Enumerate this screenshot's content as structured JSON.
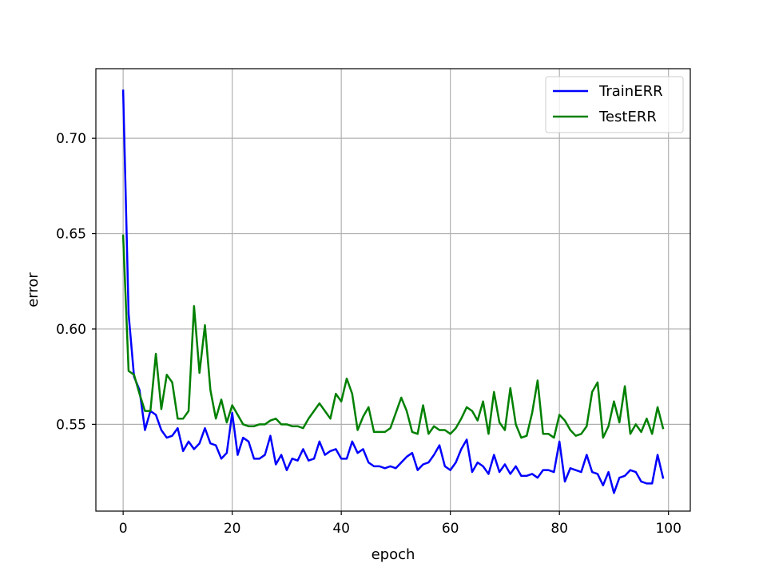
{
  "chart_data": {
    "type": "line",
    "xlabel": "epoch",
    "ylabel": "error",
    "xlim": [
      -5,
      104
    ],
    "ylim": [
      0.5045,
      0.7365
    ],
    "xticks": [
      0,
      20,
      40,
      60,
      80,
      100
    ],
    "yticks": [
      0.55,
      0.6,
      0.65,
      0.7
    ],
    "ytick_labels": [
      "0.55",
      "0.60",
      "0.65",
      "0.70"
    ],
    "grid": true,
    "legend_position": "top-right",
    "series": [
      {
        "name": "TrainERR",
        "color": "#0000ff",
        "x": [
          0,
          1,
          2,
          3,
          4,
          5,
          6,
          7,
          8,
          9,
          10,
          11,
          12,
          13,
          14,
          15,
          16,
          17,
          18,
          19,
          20,
          21,
          22,
          23,
          24,
          25,
          26,
          27,
          28,
          29,
          30,
          31,
          32,
          33,
          34,
          35,
          36,
          37,
          38,
          39,
          40,
          41,
          42,
          43,
          44,
          45,
          46,
          47,
          48,
          49,
          50,
          51,
          52,
          53,
          54,
          55,
          56,
          57,
          58,
          59,
          60,
          61,
          62,
          63,
          64,
          65,
          66,
          67,
          68,
          69,
          70,
          71,
          72,
          73,
          74,
          75,
          76,
          77,
          78,
          79,
          80,
          81,
          82,
          83,
          84,
          85,
          86,
          87,
          88,
          89,
          90,
          91,
          92,
          93,
          94,
          95,
          96,
          97,
          98,
          99
        ],
        "values": [
          0.725,
          0.608,
          0.575,
          0.568,
          0.547,
          0.557,
          0.555,
          0.547,
          0.543,
          0.544,
          0.548,
          0.536,
          0.541,
          0.537,
          0.54,
          0.548,
          0.54,
          0.539,
          0.532,
          0.535,
          0.556,
          0.534,
          0.543,
          0.541,
          0.532,
          0.532,
          0.534,
          0.544,
          0.529,
          0.534,
          0.526,
          0.532,
          0.531,
          0.537,
          0.531,
          0.532,
          0.541,
          0.534,
          0.536,
          0.537,
          0.532,
          0.532,
          0.541,
          0.535,
          0.537,
          0.53,
          0.528,
          0.528,
          0.527,
          0.528,
          0.527,
          0.53,
          0.533,
          0.535,
          0.526,
          0.529,
          0.53,
          0.534,
          0.539,
          0.528,
          0.526,
          0.53,
          0.537,
          0.542,
          0.525,
          0.53,
          0.528,
          0.524,
          0.534,
          0.525,
          0.529,
          0.524,
          0.528,
          0.523,
          0.523,
          0.524,
          0.522,
          0.526,
          0.526,
          0.525,
          0.541,
          0.52,
          0.527,
          0.526,
          0.525,
          0.534,
          0.525,
          0.524,
          0.518,
          0.525,
          0.514,
          0.522,
          0.523,
          0.526,
          0.525,
          0.52,
          0.519,
          0.519,
          0.534,
          0.522
        ]
      },
      {
        "name": "TestERR",
        "color": "#008000",
        "x": [
          0,
          1,
          2,
          3,
          4,
          5,
          6,
          7,
          8,
          9,
          10,
          11,
          12,
          13,
          14,
          15,
          16,
          17,
          18,
          19,
          20,
          21,
          22,
          23,
          24,
          25,
          26,
          27,
          28,
          29,
          30,
          31,
          32,
          33,
          34,
          35,
          36,
          37,
          38,
          39,
          40,
          41,
          42,
          43,
          44,
          45,
          46,
          47,
          48,
          49,
          50,
          51,
          52,
          53,
          54,
          55,
          56,
          57,
          58,
          59,
          60,
          61,
          62,
          63,
          64,
          65,
          66,
          67,
          68,
          69,
          70,
          71,
          72,
          73,
          74,
          75,
          76,
          77,
          78,
          79,
          80,
          81,
          82,
          83,
          84,
          85,
          86,
          87,
          88,
          89,
          90,
          91,
          92,
          93,
          94,
          95,
          96,
          97,
          98,
          99
        ],
        "values": [
          0.649,
          0.578,
          0.576,
          0.566,
          0.557,
          0.557,
          0.587,
          0.558,
          0.576,
          0.572,
          0.553,
          0.553,
          0.557,
          0.612,
          0.577,
          0.602,
          0.568,
          0.553,
          0.563,
          0.551,
          0.56,
          0.555,
          0.55,
          0.549,
          0.549,
          0.55,
          0.55,
          0.552,
          0.553,
          0.55,
          0.55,
          0.549,
          0.549,
          0.548,
          0.553,
          0.557,
          0.561,
          0.557,
          0.553,
          0.566,
          0.562,
          0.574,
          0.566,
          0.547,
          0.554,
          0.559,
          0.546,
          0.546,
          0.546,
          0.548,
          0.556,
          0.564,
          0.557,
          0.546,
          0.545,
          0.56,
          0.545,
          0.549,
          0.547,
          0.547,
          0.545,
          0.548,
          0.553,
          0.559,
          0.557,
          0.552,
          0.562,
          0.545,
          0.567,
          0.551,
          0.547,
          0.569,
          0.55,
          0.543,
          0.544,
          0.556,
          0.573,
          0.545,
          0.545,
          0.543,
          0.555,
          0.552,
          0.547,
          0.544,
          0.545,
          0.549,
          0.567,
          0.572,
          0.543,
          0.549,
          0.562,
          0.551,
          0.57,
          0.545,
          0.55,
          0.546,
          0.553,
          0.545,
          0.559,
          0.548
        ]
      }
    ]
  }
}
